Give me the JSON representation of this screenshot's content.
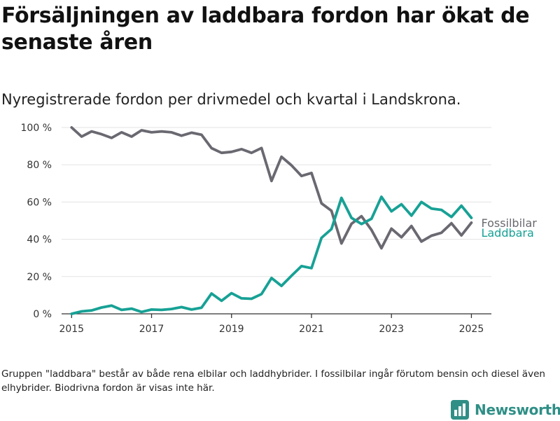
{
  "title": "Försäljningen av laddbara fordon har ökat de senaste åren",
  "subtitle": "Nyregistrerade fordon per drivmedel och kvartal i Landskrona.",
  "footnote": "Gruppen \"laddbara\" består av både rena elbilar och laddhybrider. I fossilbilar ingår förutom bensin och diesel även elhybrider. Biodrivna fordon är visas inte här.",
  "brand": {
    "name": "Newsworthy",
    "icon": "bar-chart-icon",
    "color": "#2f8f86"
  },
  "colors": {
    "fossil": "#6a6870",
    "laddbara": "#17a195",
    "grid": "#e3e3e3",
    "axis": "#333333"
  },
  "chart_data": {
    "type": "line",
    "title": "",
    "xlabel": "",
    "ylabel": "",
    "x_ticks": [
      "2015",
      "2017",
      "2019",
      "2021",
      "2023",
      "2025"
    ],
    "y_ticks": [
      "0 %",
      "20 %",
      "40 %",
      "60 %",
      "80 %",
      "100 %"
    ],
    "xlim": [
      2014.75,
      2025.5
    ],
    "ylim": [
      0,
      100
    ],
    "grid": "horizontal",
    "x": [
      2015.0,
      2015.25,
      2015.5,
      2015.75,
      2016.0,
      2016.25,
      2016.5,
      2016.75,
      2017.0,
      2017.25,
      2017.5,
      2017.75,
      2018.0,
      2018.25,
      2018.5,
      2018.75,
      2019.0,
      2019.25,
      2019.5,
      2019.75,
      2020.0,
      2020.25,
      2020.5,
      2020.75,
      2021.0,
      2021.25,
      2021.5,
      2021.75,
      2022.0,
      2022.25,
      2022.5,
      2022.75,
      2023.0,
      2023.25,
      2023.5,
      2023.75,
      2024.0,
      2024.25,
      2024.5,
      2024.75,
      2025.0
    ],
    "series": [
      {
        "name": "Fossilbilar",
        "color": "#6a6870",
        "values": [
          100,
          95.1,
          97.9,
          96.4,
          94.4,
          97.4,
          95.1,
          98.5,
          97.4,
          97.9,
          97.4,
          95.6,
          97.2,
          96.1,
          88.9,
          86.4,
          86.9,
          88.4,
          86.4,
          89,
          71.3,
          84.3,
          79.7,
          74,
          75.6,
          59.3,
          55.3,
          37.8,
          48.3,
          52.4,
          45,
          35.2,
          45.7,
          41.1,
          47.1,
          38.8,
          41.9,
          43.5,
          48.6,
          42.1,
          48.9
        ]
      },
      {
        "name": "Laddbara",
        "color": "#17a195",
        "values": [
          0,
          1.3,
          1.8,
          3.4,
          4.4,
          2.1,
          2.8,
          1.0,
          2.3,
          2.1,
          2.6,
          3.6,
          2.3,
          3.3,
          10.9,
          7.0,
          11.1,
          8.3,
          8.1,
          10.6,
          19.2,
          15.0,
          20.4,
          25.6,
          24.5,
          40.8,
          45.5,
          62.2,
          51.5,
          48.2,
          51.0,
          62.8,
          55.0,
          58.8,
          52.7,
          60.0,
          56.5,
          55.8,
          52.0,
          58.0,
          51.5
        ]
      }
    ]
  }
}
